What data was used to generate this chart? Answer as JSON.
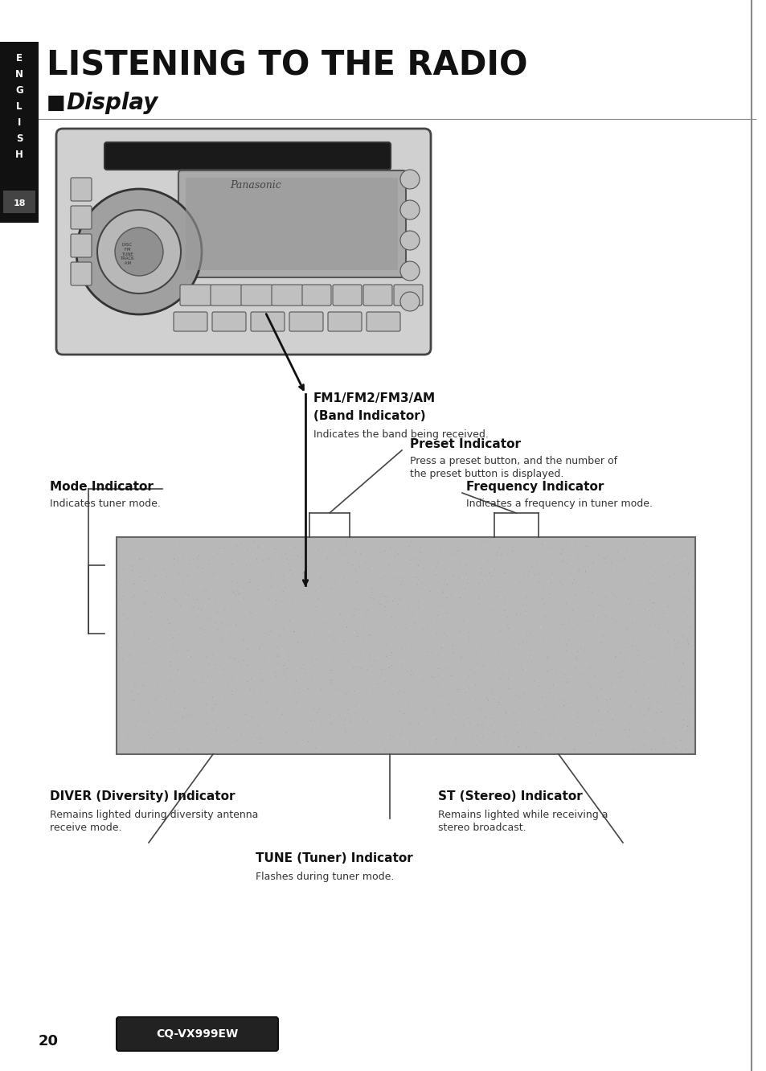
{
  "page_bg": "#ffffff",
  "sidebar_bg": "#111111",
  "sidebar_letters": [
    "E",
    "N",
    "G",
    "L",
    "I",
    "S",
    "H"
  ],
  "sidebar_number": "18",
  "title": "LISTENING TO THE RADIO",
  "subtitle_square": "■",
  "subtitle_text": "Display",
  "labels": {
    "band_title1": "FM1/FM2/FM3/AM",
    "band_title2": "(Band Indicator)",
    "band_body": "Indicates the band being received.",
    "preset_title": "Preset Indicator",
    "preset_body1": "Press a preset button, and the number of",
    "preset_body2": "the preset button is displayed.",
    "freq_title": "Frequency Indicator",
    "freq_body": "Indicates a frequency in tuner mode.",
    "mode_title": "Mode Indicator",
    "mode_body": "Indicates tuner mode.",
    "diver_title": "DIVER (Diversity) Indicator",
    "diver_body1": "Remains lighted during diversity antenna",
    "diver_body2": "receive mode.",
    "tune_title": "TUNE (Tuner) Indicator",
    "tune_body": "Flashes during tuner mode.",
    "st_title": "ST (Stereo) Indicator",
    "st_body1": "Remains lighted while receiving a",
    "st_body2": "stereo broadcast."
  },
  "page_number": "20",
  "model": "CQ-VX999EW",
  "display_gray": "#b8b8b8",
  "display_dark": "#888888"
}
